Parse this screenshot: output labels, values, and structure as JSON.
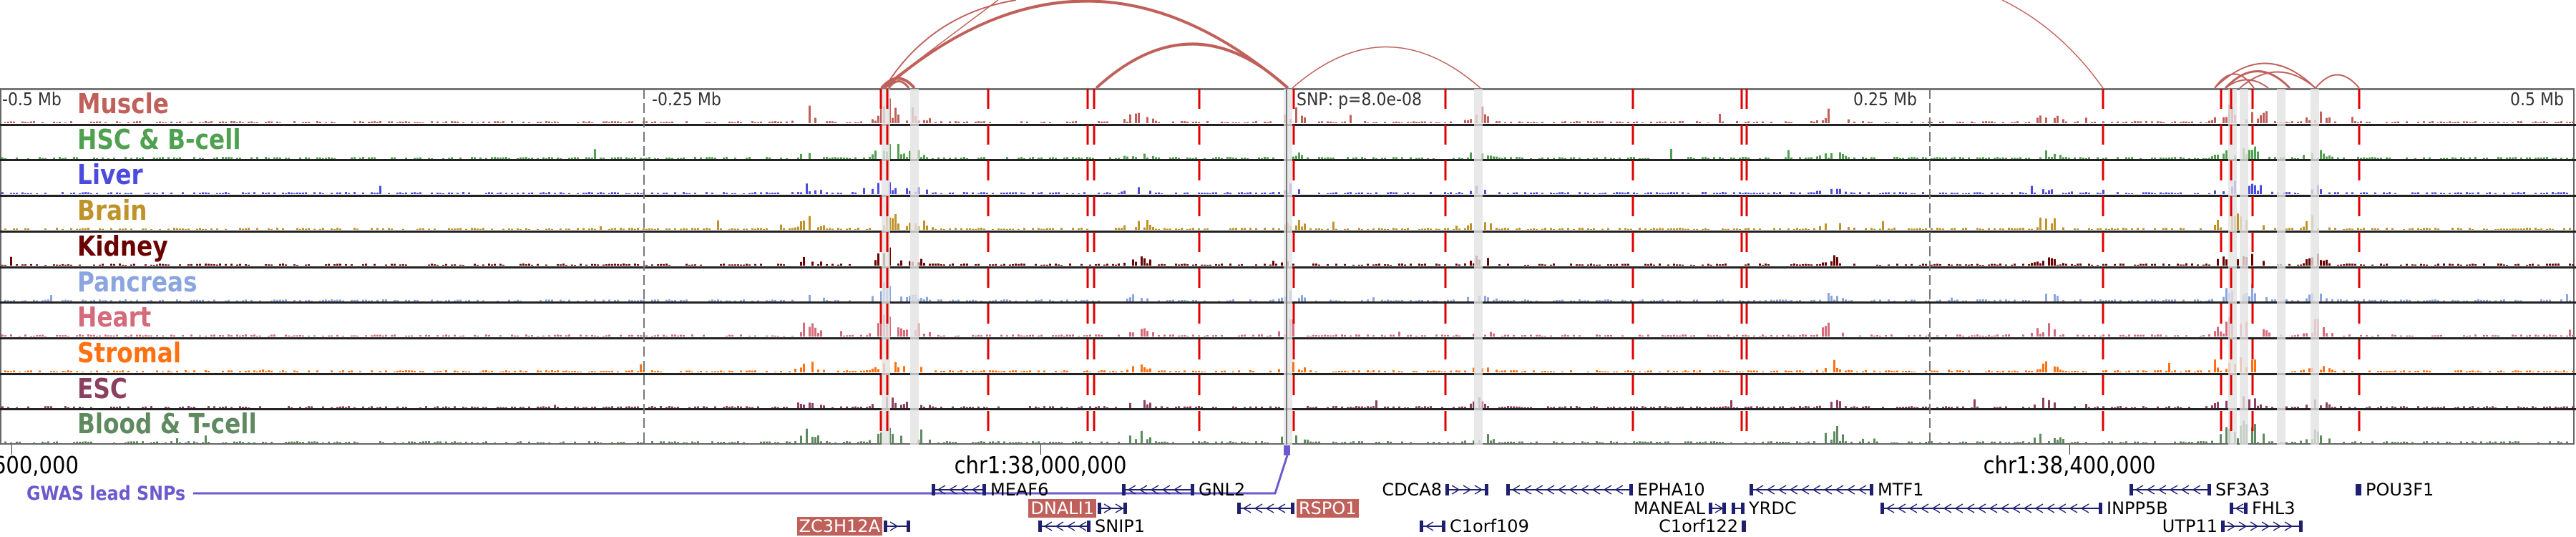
{
  "tracks": [
    {
      "label": "Muscle",
      "color": "#c0605a"
    },
    {
      "label": "HSC & B-cell",
      "color": "#4fa04f"
    },
    {
      "label": "Liver",
      "color": "#4b4be0"
    },
    {
      "label": "Brain",
      "color": "#c0922a"
    },
    {
      "label": "Kidney",
      "color": "#6b0000"
    },
    {
      "label": "Pancreas",
      "color": "#8aa5e0"
    },
    {
      "label": "Heart",
      "color": "#d46a7a"
    },
    {
      "label": "Stromal",
      "color": "#ff7010"
    },
    {
      "label": "ESC",
      "color": "#8b4060"
    },
    {
      "label": "Blood & T-cell",
      "color": "#5f8a5f"
    }
  ],
  "axis": {
    "top_labels": [
      "-0.5 Mb",
      "-0.25 Mb",
      "0.25 Mb",
      "0.5 Mb"
    ],
    "snp_label": "SNP: p=8.0e-08",
    "bottom_labels": [
      ",600,000",
      "chr1:38,000,000",
      "chr1:38,400,000"
    ]
  },
  "gwas": {
    "label": "GWAS lead SNPs",
    "color": "#6a5acd"
  },
  "genes": [
    {
      "name": "MEAF6",
      "strand": "-",
      "highlighted": false
    },
    {
      "name": "GNL2",
      "strand": "-",
      "highlighted": false
    },
    {
      "name": "CDCA8",
      "strand": "+",
      "highlighted": false
    },
    {
      "name": "EPHA10",
      "strand": "-",
      "highlighted": false
    },
    {
      "name": "MTF1",
      "strand": "-",
      "highlighted": false
    },
    {
      "name": "SF3A3",
      "strand": "-",
      "highlighted": false
    },
    {
      "name": "POU3F1",
      "strand": "+",
      "highlighted": false
    },
    {
      "name": "DNALI1",
      "strand": "+",
      "highlighted": true
    },
    {
      "name": "RSPO1",
      "strand": "-",
      "highlighted": true
    },
    {
      "name": "MANEAL",
      "strand": "+",
      "highlighted": false
    },
    {
      "name": "YRDC",
      "strand": "-",
      "highlighted": false
    },
    {
      "name": "INPP5B",
      "strand": "-",
      "highlighted": false
    },
    {
      "name": "FHL3",
      "strand": "-",
      "highlighted": false
    },
    {
      "name": "ZC3H12A",
      "strand": "+",
      "highlighted": true
    },
    {
      "name": "SNIP1",
      "strand": "-",
      "highlighted": false
    },
    {
      "name": "C1orf109",
      "strand": "-",
      "highlighted": false
    },
    {
      "name": "C1orf122",
      "strand": "+",
      "highlighted": false
    },
    {
      "name": "UTP11",
      "strand": "+",
      "highlighted": false
    }
  ],
  "colors": {
    "peak_line": "#e00000",
    "arc": "#c0605a",
    "highlight_band": "#e2e2e2",
    "gene": "#1f1f70",
    "gene_highlight_box": "#c0605a"
  }
}
